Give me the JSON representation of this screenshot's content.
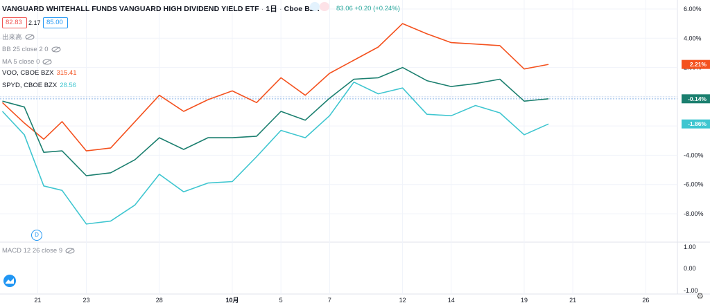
{
  "header": {
    "title": "VANGUARD WHITEHALL FUNDS VANGUARD HIGH DIVIDEND YIELD ETF",
    "interval": "1日",
    "exchange": "Cboe BZX",
    "price_text": "83.06 +0.20 (+0.24%)",
    "bid": "82.83",
    "spread": "2.17",
    "ask": "85.00",
    "separator": "·"
  },
  "legend": {
    "volume": "出来高",
    "bb": "BB 25 close 2 0",
    "ma": "MA 5 close 0",
    "voo_label": "VOO, CBOE BZX",
    "voo_value": "315.41",
    "spyd_label": "SPYD, CBOE BZX",
    "spyd_value": "28.56",
    "macd": "MACD 12 26 close 9"
  },
  "markers": {
    "dividend": "D"
  },
  "colors": {
    "main": "#1b7f6f",
    "voo": "#f4511e",
    "spyd": "#3fc6d0",
    "bid": "#ef5350",
    "ask": "#2196f3",
    "grid": "#f0f3fa",
    "axis_text": "#131722"
  },
  "icons": {
    "logo": "tradingview-logo-icon",
    "settings": "gear-icon",
    "visibility": "eye-off-icon"
  },
  "chart_data": {
    "type": "line",
    "ylim": [
      -9.6,
      6.6
    ],
    "y_ticks": [
      "6.00%",
      "4.00%",
      "2.00%",
      "-4.00%",
      "-6.00%",
      "-8.00%"
    ],
    "y_tick_values": [
      6,
      4,
      2,
      -4,
      -6,
      -8
    ],
    "x_ticks": [
      "21",
      "23",
      "28",
      "10月",
      "5",
      "7",
      "12",
      "14",
      "19",
      "21",
      "26"
    ],
    "x_tick_index": [
      1,
      3,
      6,
      9,
      11,
      13,
      16,
      18,
      21,
      23,
      26
    ],
    "x_index_range": [
      -0.55,
      27.3
    ],
    "series": [
      {
        "name": "VOO",
        "color": "#f4511e",
        "last_label": "2.21%",
        "x": [
          -0.45,
          0.45,
          1.25,
          2,
          3,
          4,
          5,
          6,
          7,
          8,
          9,
          10,
          11,
          12,
          13,
          14,
          15,
          16,
          17,
          18,
          19,
          20,
          21,
          22
        ],
        "values": [
          -0.4,
          -1.8,
          -2.9,
          -1.7,
          -3.7,
          -3.5,
          -1.7,
          0.1,
          -1.0,
          -0.2,
          0.4,
          -0.4,
          1.3,
          0.1,
          1.6,
          2.5,
          3.4,
          5.0,
          4.3,
          3.7,
          3.6,
          3.5,
          1.9,
          2.21
        ]
      },
      {
        "name": "VOLUME_MAIN",
        "color": "#1b7f6f",
        "last_label": "-0.14%",
        "x": [
          -0.45,
          0.45,
          1.25,
          2,
          3,
          4,
          5,
          6,
          7,
          8,
          9,
          10,
          11,
          12,
          13,
          14,
          15,
          16,
          17,
          18,
          19,
          20,
          21,
          22
        ],
        "values": [
          -0.3,
          -0.7,
          -3.8,
          -3.7,
          -5.4,
          -5.2,
          -4.3,
          -2.8,
          -3.6,
          -2.8,
          -2.8,
          -2.7,
          -1.0,
          -1.6,
          -0.1,
          1.2,
          1.3,
          2.0,
          1.1,
          0.7,
          0.9,
          1.2,
          -0.3,
          -0.14
        ]
      },
      {
        "name": "SPYD",
        "color": "#3fc6d0",
        "last_label": "-1.86%",
        "x": [
          -0.45,
          0.45,
          1.25,
          2,
          3,
          4,
          5,
          6,
          7,
          8,
          9,
          10,
          11,
          12,
          13,
          14,
          15,
          16,
          17,
          18,
          19,
          20,
          21,
          22
        ],
        "values": [
          -1.0,
          -2.6,
          -6.1,
          -6.4,
          -8.7,
          -8.5,
          -7.4,
          -5.3,
          -6.5,
          -5.9,
          -5.8,
          -4.1,
          -2.3,
          -2.8,
          -1.3,
          1.0,
          0.2,
          0.6,
          -1.2,
          -1.3,
          -0.6,
          -1.1,
          -2.6,
          -1.86
        ]
      }
    ],
    "macd_ticks": [
      "1.00",
      "0.00",
      "-1.00"
    ]
  }
}
